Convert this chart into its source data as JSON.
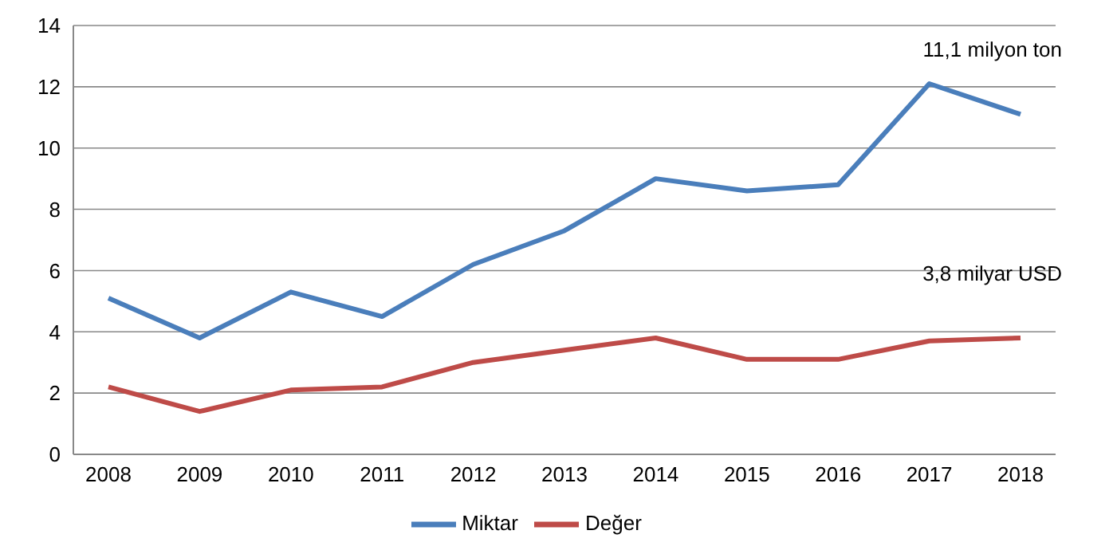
{
  "chart_data": {
    "type": "line",
    "categories": [
      "2008",
      "2009",
      "2010",
      "2011",
      "2012",
      "2013",
      "2014",
      "2015",
      "2016",
      "2017",
      "2018"
    ],
    "series": [
      {
        "name": "Miktar",
        "color": "#4a7ebb",
        "values": [
          5.1,
          3.8,
          5.3,
          4.5,
          6.2,
          7.3,
          9.0,
          8.6,
          8.8,
          12.1,
          11.1
        ]
      },
      {
        "name": "Değer",
        "color": "#be4b48",
        "values": [
          2.2,
          1.4,
          2.1,
          2.2,
          3.0,
          3.4,
          3.8,
          3.1,
          3.1,
          3.7,
          3.8
        ]
      }
    ],
    "ylim": [
      0,
      14
    ],
    "yticks": [
      0,
      2,
      4,
      6,
      8,
      10,
      12,
      14
    ],
    "grid": "y",
    "legend": "bottom",
    "marker": "none",
    "line_style": "solid",
    "annotations": [
      {
        "text": "11,1 milyon ton",
        "x": "2018",
        "y": 11.1
      },
      {
        "text": "3,8 milyar USD",
        "x": "2018",
        "y": 3.8
      }
    ]
  }
}
